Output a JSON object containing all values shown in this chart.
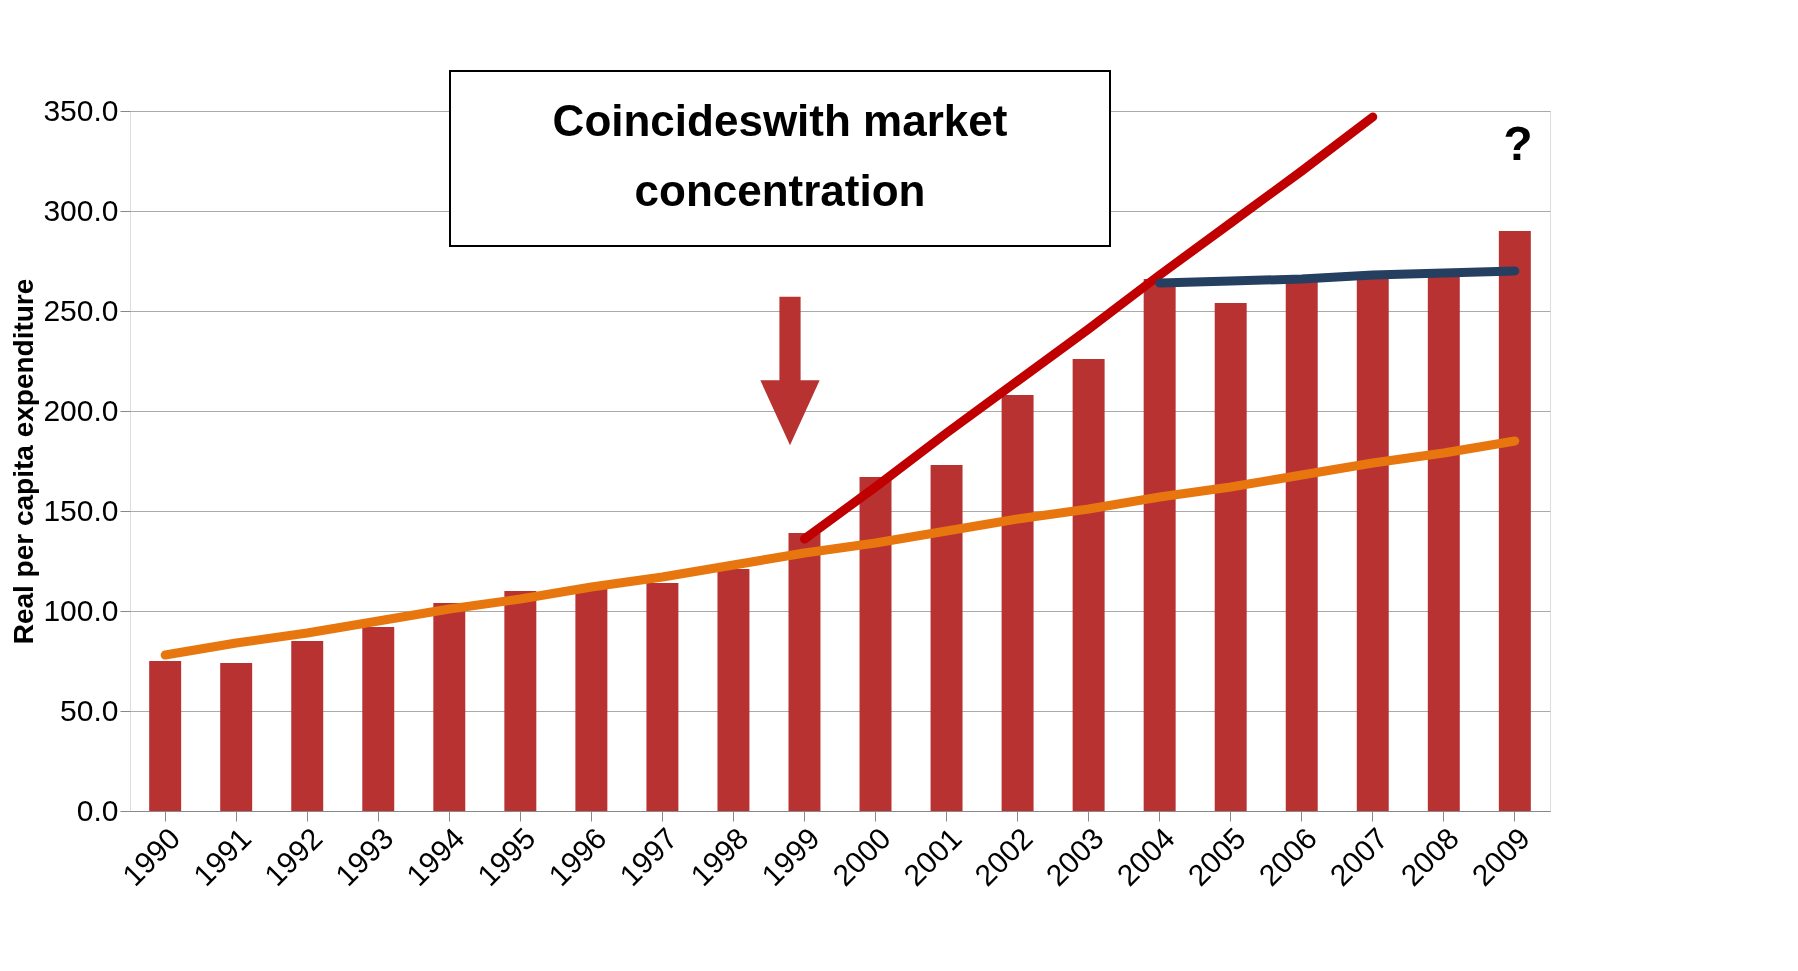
{
  "chart_data": {
    "type": "bar",
    "ylabel": "Real per capita expenditure",
    "categories": [
      "1990",
      "1991",
      "1992",
      "1993",
      "1994",
      "1995",
      "1996",
      "1997",
      "1998",
      "1999",
      "2000",
      "2001",
      "2002",
      "2003",
      "2004",
      "2005",
      "2006",
      "2007",
      "2008",
      "2009"
    ],
    "series": [
      {
        "type": "bar",
        "color": "#b83232",
        "values": [
          75,
          74,
          85,
          92,
          104,
          110,
          111,
          114,
          121,
          139,
          167,
          173,
          208,
          226,
          266,
          254,
          267,
          267,
          267,
          290
        ]
      },
      {
        "type": "line",
        "color": "#e8760f",
        "values": [
          78,
          84,
          89,
          95,
          101,
          106,
          112,
          117,
          123,
          129,
          134,
          140,
          146,
          151,
          157,
          162,
          168,
          174,
          179,
          185
        ]
      },
      {
        "type": "line",
        "color": "#c00000",
        "values": [
          null,
          null,
          null,
          null,
          null,
          null,
          null,
          null,
          null,
          136,
          162,
          189,
          215,
          241,
          268,
          294,
          320,
          347,
          null,
          null
        ]
      },
      {
        "type": "line",
        "color": "#243f60",
        "values": [
          null,
          null,
          null,
          null,
          null,
          null,
          null,
          null,
          null,
          null,
          null,
          null,
          null,
          null,
          264,
          265,
          266,
          268,
          269,
          270
        ]
      }
    ],
    "ylim": [
      0,
      350
    ],
    "yticks": [
      {
        "value": 0,
        "label": "0.0"
      },
      {
        "value": 50,
        "label": "50.0"
      },
      {
        "value": 100,
        "label": "100.0"
      },
      {
        "value": 150,
        "label": "150.0"
      },
      {
        "value": 200,
        "label": "200.0"
      },
      {
        "value": 250,
        "label": "250.0"
      },
      {
        "value": 300,
        "label": "300.0"
      },
      {
        "value": 350,
        "label": "350.0"
      }
    ],
    "grid": "y",
    "annotations": [
      "Coincideswith market concentration",
      "?"
    ]
  }
}
